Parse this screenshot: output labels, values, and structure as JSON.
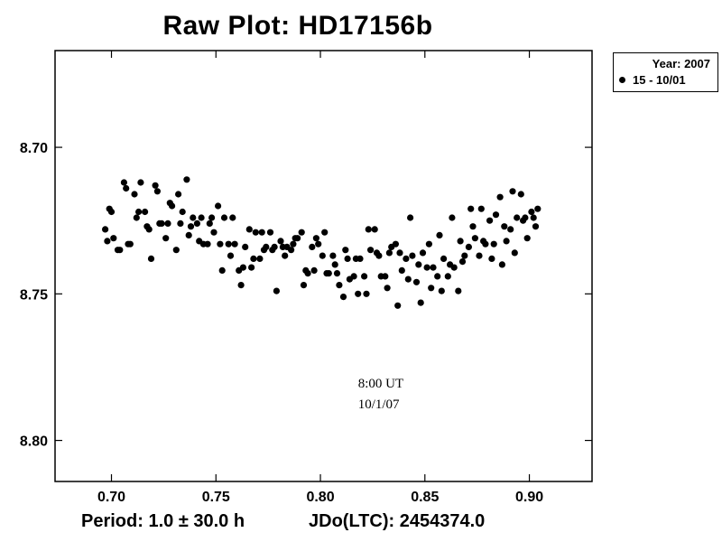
{
  "chart_data": {
    "type": "scatter",
    "title": "Raw Plot: HD17156b",
    "xlabel": "",
    "ylabel": "",
    "xlim": [
      0.673,
      0.93
    ],
    "ylim": [
      8.667,
      8.814
    ],
    "y_inverted": true,
    "x_ticks": [
      0.7,
      0.75,
      0.8,
      0.85,
      0.9
    ],
    "x_tick_labels": [
      "0.70",
      "0.75",
      "0.80",
      "0.85",
      "0.90"
    ],
    "y_ticks": [
      8.7,
      8.75,
      8.8
    ],
    "y_tick_labels": [
      "8.70",
      "8.75",
      "8.80"
    ],
    "grid": false,
    "legend": {
      "placement": "outside-top-right",
      "header": "Year: 2007",
      "entry": "15 - 10/01"
    },
    "annotation": {
      "line1": "8:00 UT",
      "line2": "10/1/07",
      "x": 0.818,
      "y": 8.782
    },
    "marker_color": "#000000",
    "series": [
      {
        "name": "15 - 10/01",
        "points": [
          [
            0.697,
            8.728
          ],
          [
            0.698,
            8.732
          ],
          [
            0.699,
            8.721
          ],
          [
            0.7,
            8.722
          ],
          [
            0.701,
            8.731
          ],
          [
            0.703,
            8.735
          ],
          [
            0.704,
            8.735
          ],
          [
            0.706,
            8.712
          ],
          [
            0.707,
            8.714
          ],
          [
            0.708,
            8.733
          ],
          [
            0.709,
            8.733
          ],
          [
            0.711,
            8.716
          ],
          [
            0.712,
            8.724
          ],
          [
            0.713,
            8.722
          ],
          [
            0.714,
            8.712
          ],
          [
            0.716,
            8.722
          ],
          [
            0.717,
            8.727
          ],
          [
            0.718,
            8.728
          ],
          [
            0.719,
            8.738
          ],
          [
            0.721,
            8.713
          ],
          [
            0.722,
            8.715
          ],
          [
            0.723,
            8.726
          ],
          [
            0.724,
            8.726
          ],
          [
            0.726,
            8.731
          ],
          [
            0.727,
            8.726
          ],
          [
            0.728,
            8.719
          ],
          [
            0.729,
            8.72
          ],
          [
            0.731,
            8.735
          ],
          [
            0.732,
            8.716
          ],
          [
            0.733,
            8.726
          ],
          [
            0.734,
            8.722
          ],
          [
            0.736,
            8.711
          ],
          [
            0.737,
            8.73
          ],
          [
            0.738,
            8.727
          ],
          [
            0.739,
            8.724
          ],
          [
            0.741,
            8.726
          ],
          [
            0.742,
            8.732
          ],
          [
            0.743,
            8.724
          ],
          [
            0.744,
            8.733
          ],
          [
            0.746,
            8.733
          ],
          [
            0.747,
            8.726
          ],
          [
            0.748,
            8.724
          ],
          [
            0.749,
            8.729
          ],
          [
            0.751,
            8.72
          ],
          [
            0.752,
            8.733
          ],
          [
            0.753,
            8.742
          ],
          [
            0.754,
            8.724
          ],
          [
            0.756,
            8.733
          ],
          [
            0.757,
            8.737
          ],
          [
            0.758,
            8.724
          ],
          [
            0.759,
            8.733
          ],
          [
            0.761,
            8.742
          ],
          [
            0.762,
            8.747
          ],
          [
            0.763,
            8.741
          ],
          [
            0.764,
            8.734
          ],
          [
            0.766,
            8.728
          ],
          [
            0.767,
            8.741
          ],
          [
            0.768,
            8.738
          ],
          [
            0.769,
            8.729
          ],
          [
            0.771,
            8.738
          ],
          [
            0.772,
            8.729
          ],
          [
            0.773,
            8.735
          ],
          [
            0.774,
            8.734
          ],
          [
            0.776,
            8.729
          ],
          [
            0.777,
            8.735
          ],
          [
            0.778,
            8.734
          ],
          [
            0.779,
            8.749
          ],
          [
            0.781,
            8.732
          ],
          [
            0.782,
            8.734
          ],
          [
            0.783,
            8.737
          ],
          [
            0.784,
            8.734
          ],
          [
            0.786,
            8.735
          ],
          [
            0.787,
            8.733
          ],
          [
            0.788,
            8.731
          ],
          [
            0.789,
            8.731
          ],
          [
            0.791,
            8.729
          ],
          [
            0.792,
            8.747
          ],
          [
            0.793,
            8.742
          ],
          [
            0.794,
            8.743
          ],
          [
            0.796,
            8.734
          ],
          [
            0.797,
            8.742
          ],
          [
            0.798,
            8.731
          ],
          [
            0.799,
            8.733
          ],
          [
            0.801,
            8.737
          ],
          [
            0.802,
            8.729
          ],
          [
            0.803,
            8.743
          ],
          [
            0.804,
            8.743
          ],
          [
            0.806,
            8.737
          ],
          [
            0.807,
            8.74
          ],
          [
            0.808,
            8.743
          ],
          [
            0.809,
            8.747
          ],
          [
            0.811,
            8.751
          ],
          [
            0.812,
            8.735
          ],
          [
            0.813,
            8.738
          ],
          [
            0.814,
            8.745
          ],
          [
            0.816,
            8.744
          ],
          [
            0.817,
            8.738
          ],
          [
            0.818,
            8.75
          ],
          [
            0.819,
            8.738
          ],
          [
            0.821,
            8.744
          ],
          [
            0.822,
            8.75
          ],
          [
            0.823,
            8.728
          ],
          [
            0.824,
            8.735
          ],
          [
            0.826,
            8.728
          ],
          [
            0.827,
            8.736
          ],
          [
            0.828,
            8.737
          ],
          [
            0.829,
            8.744
          ],
          [
            0.831,
            8.744
          ],
          [
            0.832,
            8.748
          ],
          [
            0.833,
            8.736
          ],
          [
            0.834,
            8.734
          ],
          [
            0.836,
            8.733
          ],
          [
            0.837,
            8.754
          ],
          [
            0.838,
            8.736
          ],
          [
            0.839,
            8.742
          ],
          [
            0.841,
            8.738
          ],
          [
            0.842,
            8.745
          ],
          [
            0.843,
            8.724
          ],
          [
            0.844,
            8.737
          ],
          [
            0.846,
            8.746
          ],
          [
            0.847,
            8.74
          ],
          [
            0.848,
            8.753
          ],
          [
            0.849,
            8.736
          ],
          [
            0.851,
            8.741
          ],
          [
            0.852,
            8.733
          ],
          [
            0.853,
            8.748
          ],
          [
            0.854,
            8.741
          ],
          [
            0.856,
            8.744
          ],
          [
            0.857,
            8.73
          ],
          [
            0.858,
            8.749
          ],
          [
            0.859,
            8.738
          ],
          [
            0.861,
            8.744
          ],
          [
            0.862,
            8.74
          ],
          [
            0.863,
            8.724
          ],
          [
            0.864,
            8.741
          ],
          [
            0.866,
            8.749
          ],
          [
            0.867,
            8.732
          ],
          [
            0.868,
            8.739
          ],
          [
            0.869,
            8.737
          ],
          [
            0.871,
            8.734
          ],
          [
            0.872,
            8.721
          ],
          [
            0.873,
            8.727
          ],
          [
            0.874,
            8.731
          ],
          [
            0.876,
            8.737
          ],
          [
            0.877,
            8.721
          ],
          [
            0.878,
            8.732
          ],
          [
            0.879,
            8.733
          ],
          [
            0.881,
            8.725
          ],
          [
            0.882,
            8.738
          ],
          [
            0.883,
            8.733
          ],
          [
            0.884,
            8.723
          ],
          [
            0.886,
            8.717
          ],
          [
            0.887,
            8.74
          ],
          [
            0.888,
            8.727
          ],
          [
            0.889,
            8.732
          ],
          [
            0.891,
            8.728
          ],
          [
            0.892,
            8.715
          ],
          [
            0.893,
            8.736
          ],
          [
            0.894,
            8.724
          ],
          [
            0.896,
            8.716
          ],
          [
            0.897,
            8.725
          ],
          [
            0.898,
            8.724
          ],
          [
            0.899,
            8.731
          ],
          [
            0.901,
            8.722
          ],
          [
            0.902,
            8.724
          ],
          [
            0.903,
            8.727
          ],
          [
            0.904,
            8.721
          ]
        ]
      }
    ]
  },
  "footer": {
    "period": "Period: 1.0 ± 30.0 h",
    "jdo": "JDo(LTC): 2454374.0"
  }
}
